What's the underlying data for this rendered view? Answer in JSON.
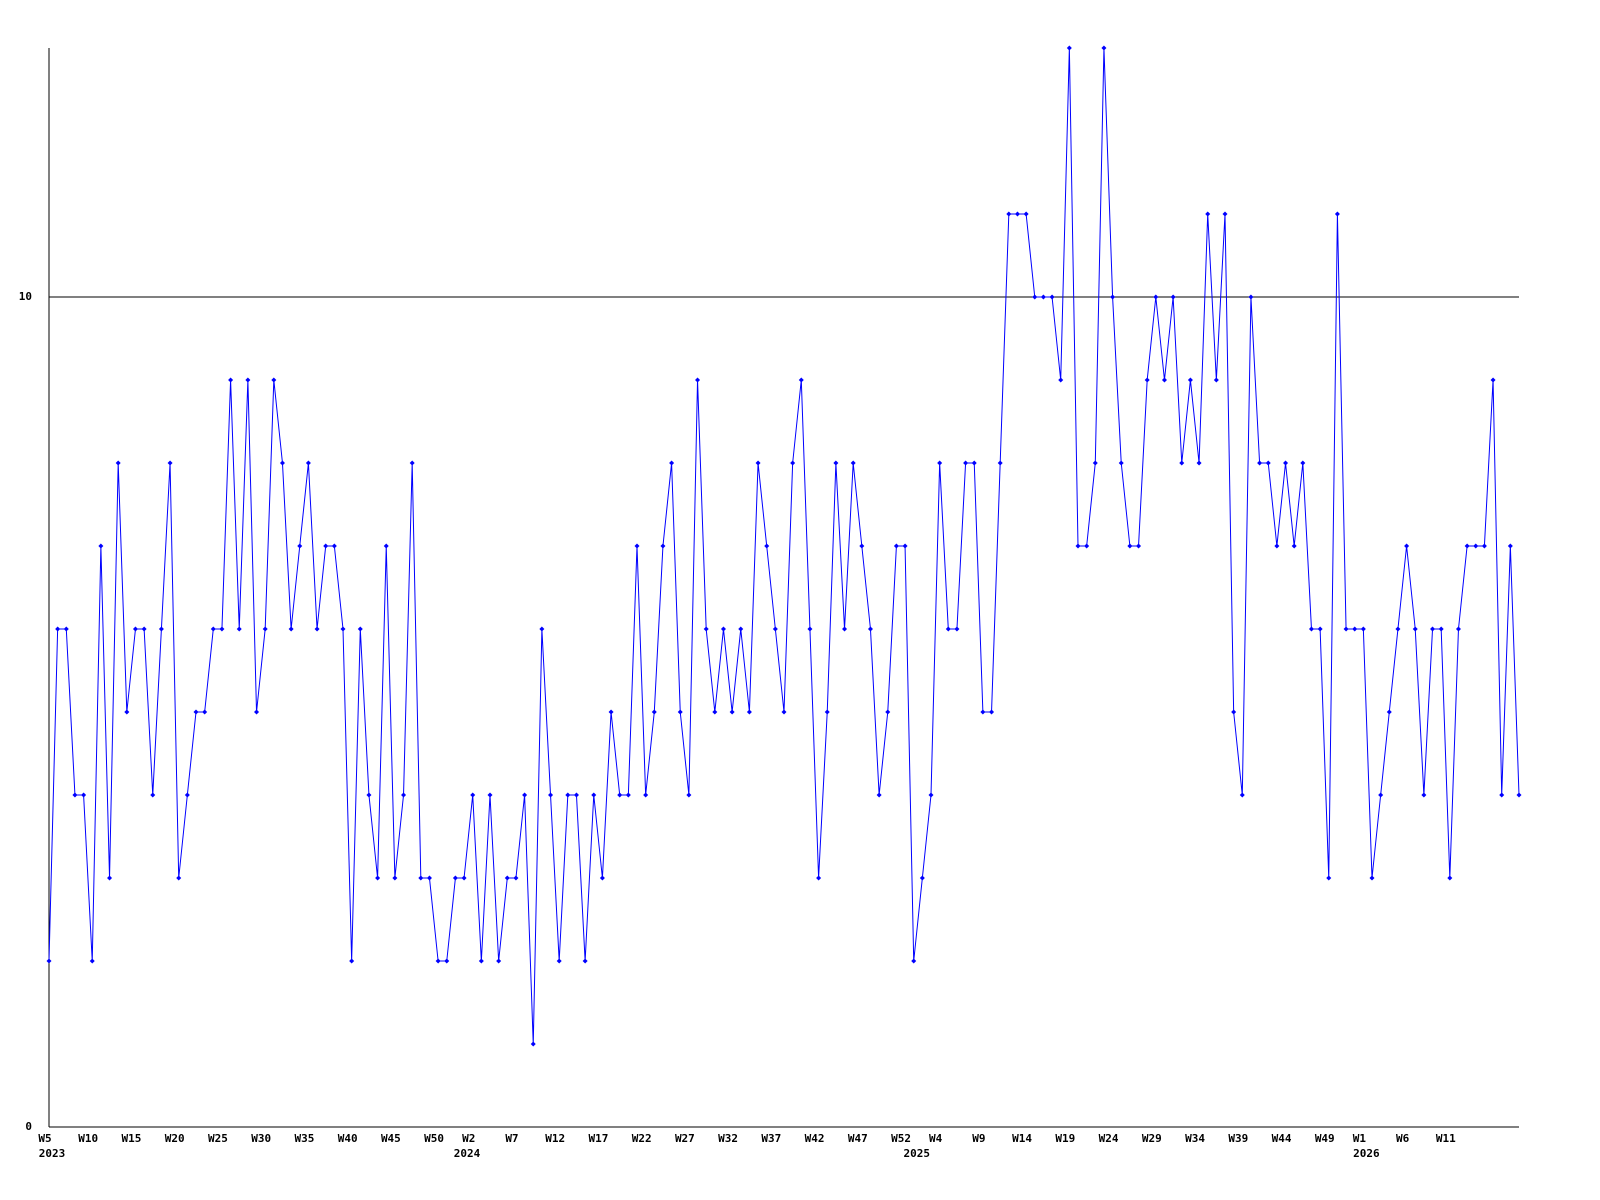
{
  "chart_data": {
    "type": "line",
    "categories": [
      "W5",
      null,
      null,
      null,
      null,
      "W10",
      null,
      null,
      null,
      null,
      "W15",
      null,
      null,
      null,
      null,
      "W20",
      null,
      null,
      null,
      null,
      "W25",
      null,
      null,
      null,
      null,
      "W30",
      null,
      null,
      null,
      null,
      "W35",
      null,
      null,
      null,
      null,
      "W40",
      null,
      null,
      null,
      null,
      "W45",
      null,
      null,
      null,
      null,
      "W50",
      null,
      null,
      null,
      "W2",
      null,
      null,
      null,
      null,
      "W7",
      null,
      null,
      null,
      null,
      "W12",
      null,
      null,
      null,
      null,
      "W17",
      null,
      null,
      null,
      null,
      "W22",
      null,
      null,
      null,
      null,
      "W27",
      null,
      null,
      null,
      null,
      "W32",
      null,
      null,
      null,
      null,
      "W37",
      null,
      null,
      null,
      null,
      "W42",
      null,
      null,
      null,
      null,
      "W47",
      null,
      null,
      null,
      null,
      "W52",
      null,
      null,
      null,
      "W4",
      null,
      null,
      null,
      null,
      "W9",
      null,
      null,
      null,
      null,
      "W14",
      null,
      null,
      null,
      null,
      "W19",
      null,
      null,
      null,
      null,
      "W24",
      null,
      null,
      null,
      null,
      "W29",
      null,
      null,
      null,
      null,
      "W34",
      null,
      null,
      null,
      null,
      "W39",
      null,
      null,
      null,
      null,
      "W44",
      null,
      null,
      null,
      null,
      "W49",
      null,
      null,
      null,
      "W1",
      null,
      null,
      null,
      null,
      "W6",
      null,
      null,
      null,
      null,
      "W11",
      null,
      null,
      null,
      null,
      null,
      null,
      null,
      null
    ],
    "years": [
      "2023",
      null,
      null,
      null,
      null,
      null,
      null,
      null,
      null,
      null,
      null,
      null,
      null,
      null,
      null,
      null,
      null,
      null,
      null,
      null,
      null,
      null,
      null,
      null,
      null,
      null,
      null,
      null,
      null,
      null,
      null,
      null,
      null,
      null,
      null,
      null,
      null,
      null,
      null,
      null,
      null,
      null,
      null,
      null,
      null,
      null,
      null,
      null,
      "2024",
      null,
      null,
      null,
      null,
      null,
      null,
      null,
      null,
      null,
      null,
      null,
      null,
      null,
      null,
      null,
      null,
      null,
      null,
      null,
      null,
      null,
      null,
      null,
      null,
      null,
      null,
      null,
      null,
      null,
      null,
      null,
      null,
      null,
      null,
      null,
      null,
      null,
      null,
      null,
      null,
      null,
      null,
      null,
      null,
      null,
      null,
      null,
      null,
      null,
      null,
      null,
      "2025",
      null,
      null,
      null,
      null,
      null,
      null,
      null,
      null,
      null,
      null,
      null,
      null,
      null,
      null,
      null,
      null,
      null,
      null,
      null,
      null,
      null,
      null,
      null,
      null,
      null,
      null,
      null,
      null,
      null,
      null,
      null,
      null,
      null,
      null,
      null,
      null,
      null,
      null,
      null,
      null,
      null,
      null,
      null,
      null,
      null,
      null,
      null,
      null,
      null,
      null,
      null,
      "2026",
      null,
      null,
      null,
      null,
      null,
      null,
      null,
      null,
      null,
      null,
      null,
      null,
      null,
      null,
      null,
      null,
      null,
      null
    ],
    "values": [
      2,
      6,
      6,
      4,
      4,
      2,
      7,
      3,
      8,
      5,
      6,
      6,
      4,
      6,
      8,
      3,
      4,
      5,
      5,
      6,
      6,
      9,
      6,
      9,
      5,
      6,
      9,
      8,
      6,
      7,
      8,
      6,
      7,
      7,
      6,
      2,
      6,
      4,
      3,
      7,
      3,
      4,
      8,
      3,
      3,
      2,
      2,
      3,
      3,
      4,
      2,
      4,
      2,
      3,
      3,
      4,
      1,
      6,
      4,
      2,
      4,
      4,
      2,
      4,
      3,
      5,
      4,
      4,
      7,
      4,
      5,
      7,
      8,
      5,
      4,
      9,
      6,
      5,
      6,
      5,
      6,
      5,
      8,
      7,
      6,
      5,
      8,
      9,
      6,
      3,
      5,
      8,
      6,
      8,
      7,
      6,
      4,
      5,
      7,
      7,
      2,
      3,
      4,
      8,
      6,
      6,
      8,
      8,
      5,
      5,
      8,
      11,
      11,
      11,
      10,
      10,
      10,
      9,
      13,
      7,
      7,
      8,
      13,
      10,
      8,
      7,
      7,
      9,
      10,
      9,
      10,
      8,
      9,
      8,
      11,
      9,
      11,
      5,
      4,
      10,
      8,
      8,
      7,
      8,
      7,
      8,
      6,
      6,
      3,
      11,
      6,
      6,
      6,
      3,
      4,
      5,
      6,
      7,
      6,
      4,
      6,
      6,
      3,
      6,
      7,
      7,
      7,
      9,
      4,
      7,
      4
    ],
    "color": "#0000ff",
    "ylim": [
      0,
      13
    ],
    "yticks": [
      0,
      10
    ],
    "grid": true
  }
}
